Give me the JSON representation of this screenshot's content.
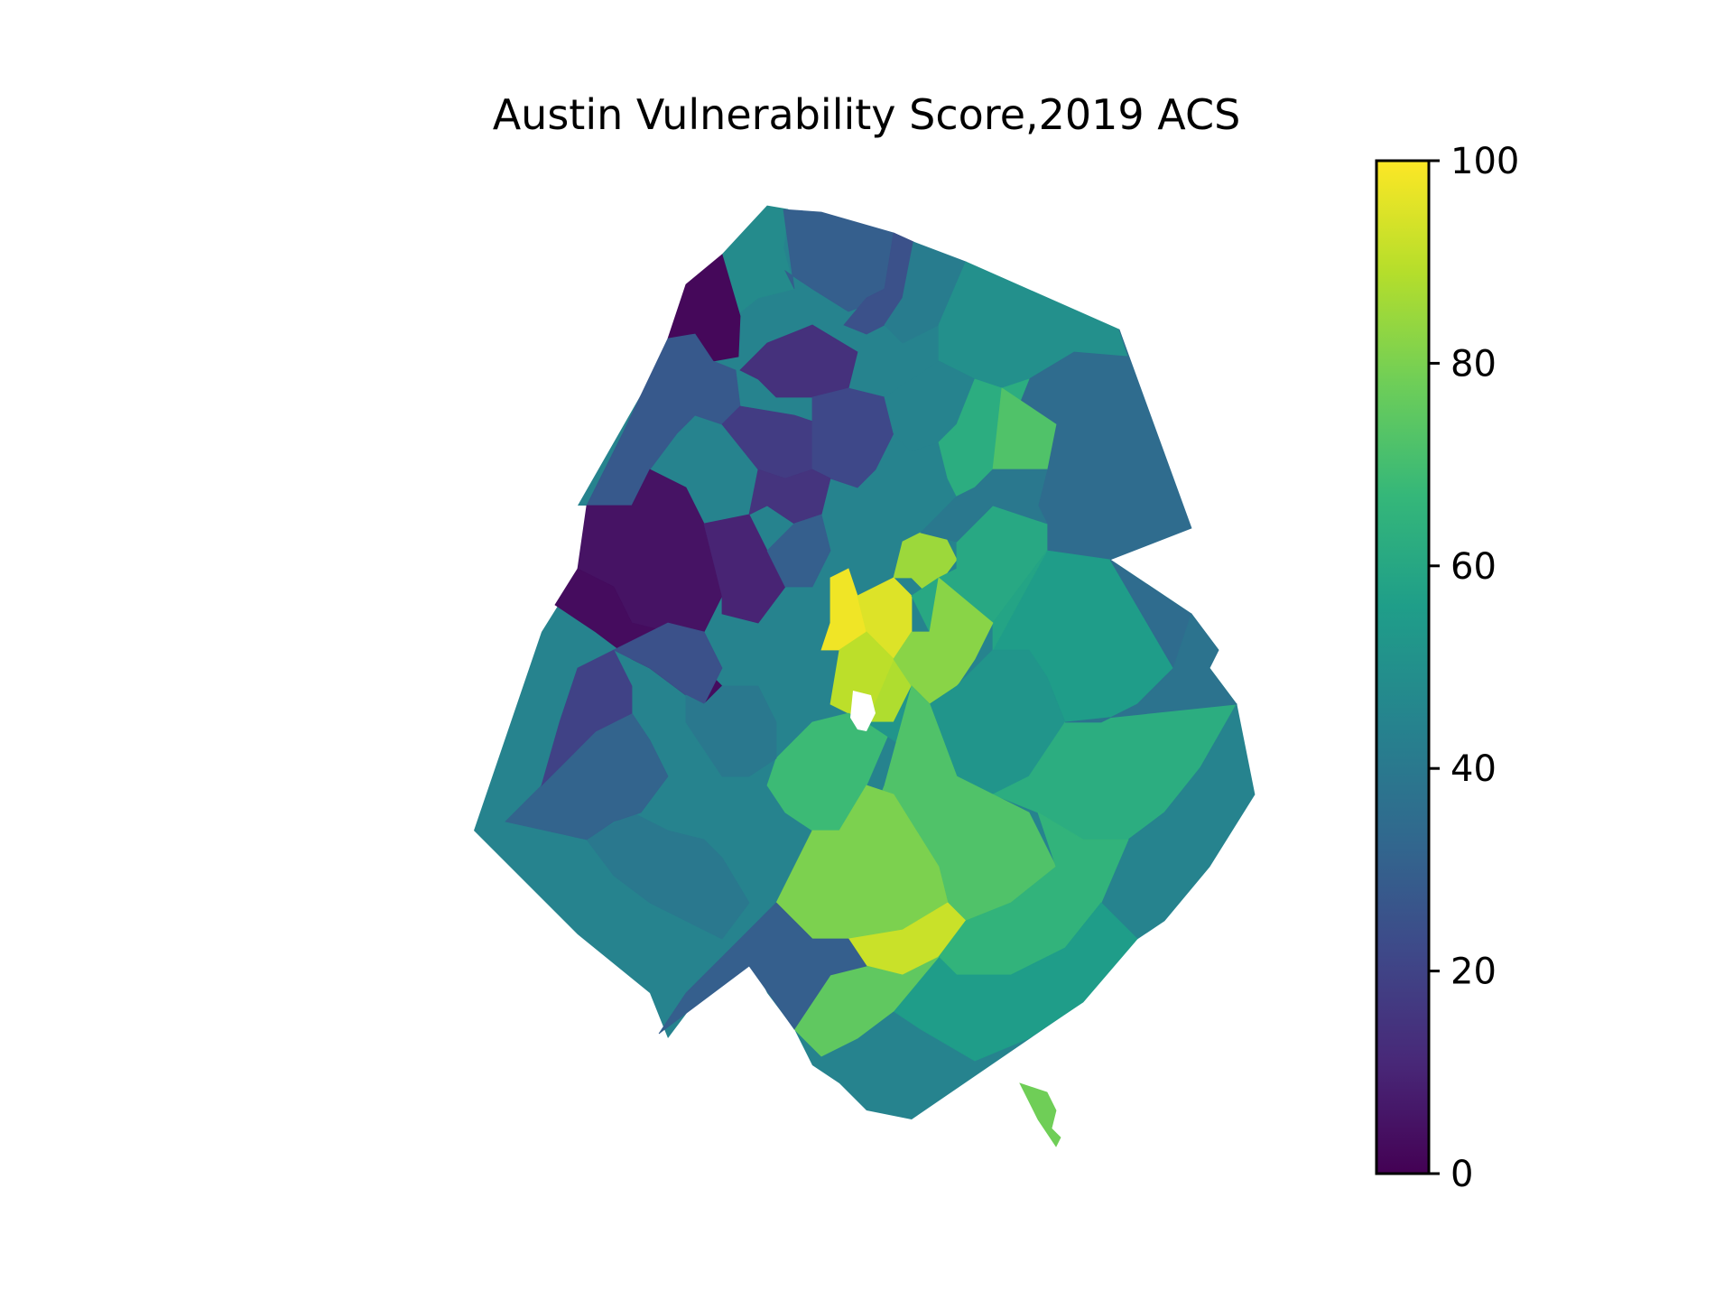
{
  "chart_data": {
    "type": "heatmap",
    "title": "Austin Vulnerability Score,2019 ACS",
    "colorbar": {
      "colormap": "viridis",
      "range": [
        0,
        100
      ],
      "ticks": [
        "0",
        "20",
        "40",
        "60",
        "80",
        "100"
      ]
    },
    "stops": [
      "#440154",
      "#482878",
      "#3e4989",
      "#31688e",
      "#26828e",
      "#1f9e89",
      "#35b779",
      "#6ece58",
      "#b5de2b",
      "#fde725"
    ],
    "regions": [
      {
        "value": 48
      },
      {
        "value": 30
      },
      {
        "value": 25
      },
      {
        "value": 2
      },
      {
        "value": 42
      },
      {
        "value": 50
      },
      {
        "value": 35
      },
      {
        "value": 14
      },
      {
        "value": 28
      },
      {
        "value": 18
      },
      {
        "value": 5
      },
      {
        "value": 10
      },
      {
        "value": 3
      },
      {
        "value": 22
      },
      {
        "value": 15
      },
      {
        "value": 30
      },
      {
        "value": 45
      },
      {
        "value": 62
      },
      {
        "value": 72
      },
      {
        "value": 85
      },
      {
        "value": 98
      },
      {
        "value": 95
      },
      {
        "value": 88
      },
      {
        "value": 60
      },
      {
        "value": 55
      },
      {
        "value": 40
      },
      {
        "value": 35
      },
      {
        "value": 58
      },
      {
        "value": 90
      },
      {
        "value": 82
      },
      {
        "value": 68
      },
      {
        "value": 52
      },
      {
        "value": 62
      },
      {
        "value": 45
      },
      {
        "value": 38
      },
      {
        "value": 72
      },
      {
        "value": 80
      },
      {
        "value": 92
      },
      {
        "value": 65
      },
      {
        "value": 55
      },
      {
        "value": 75
      },
      {
        "value": 30
      },
      {
        "value": 40
      },
      {
        "value": 32
      },
      {
        "value": 20
      },
      {
        "value": 25
      },
      {
        "value": 40
      },
      {
        "value": 78
      }
    ]
  }
}
